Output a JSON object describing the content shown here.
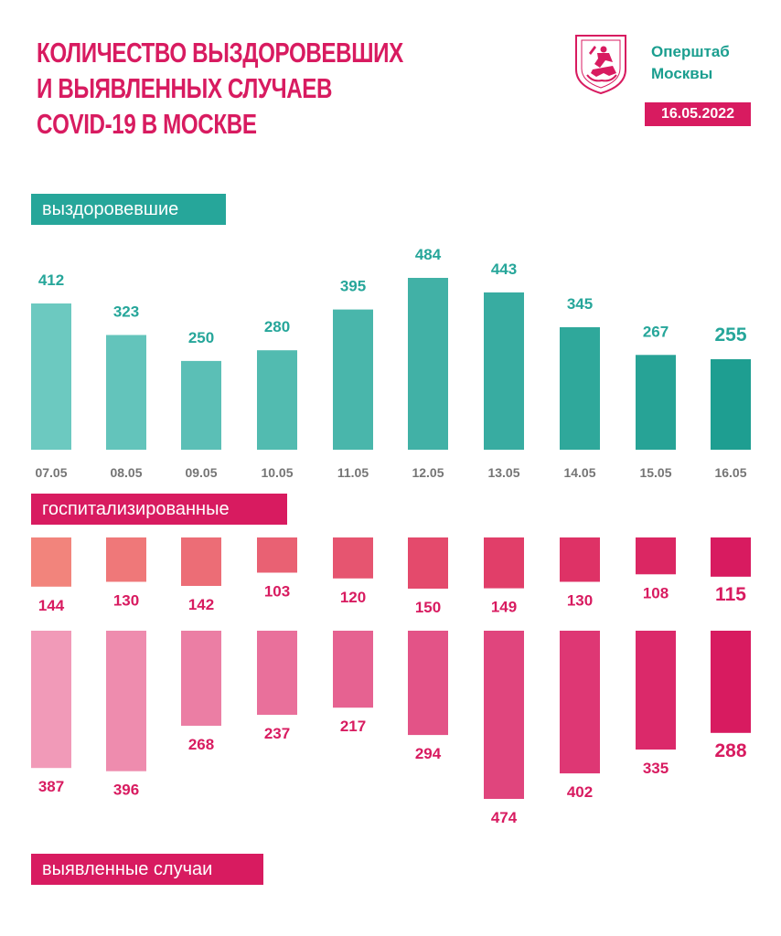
{
  "header": {
    "title_lines": [
      "КОЛИЧЕСТВО ВЫЗДОРОВЕВШИХ",
      "И ВЫЯВЛЕННЫХ СЛУЧАЕВ",
      "COVID-19 В МОСКВЕ"
    ],
    "brand_lines": [
      "Оперштаб",
      "Москвы"
    ],
    "date": "16.05.2022",
    "logo_icon": "moscow-coat-of-arms-icon"
  },
  "labels": {
    "recovered": "выздоровевшие",
    "hospitalized": "госпитализированные",
    "cases": "выявленные случаи"
  },
  "colors": {
    "accent_pink": "#d81b60",
    "accent_teal": "#26a69a",
    "brand_teal": "#1a9e8f",
    "date_label_gray": "#757575"
  },
  "chart_data": [
    {
      "type": "bar",
      "categories": [
        "07.05",
        "08.05",
        "09.05",
        "10.05",
        "11.05",
        "12.05",
        "13.05",
        "14.05",
        "15.05",
        "16.05"
      ],
      "series": [
        {
          "name": "выздоровевшие",
          "values": [
            412,
            323,
            250,
            280,
            395,
            484,
            443,
            345,
            267,
            255
          ]
        }
      ],
      "direction": "up",
      "color_gradient": [
        "#6cc9c0",
        "#1e9e91"
      ]
    },
    {
      "type": "bar",
      "categories": [
        "07.05",
        "08.05",
        "09.05",
        "10.05",
        "11.05",
        "12.05",
        "13.05",
        "14.05",
        "15.05",
        "16.05"
      ],
      "series": [
        {
          "name": "госпитализированные",
          "values": [
            144,
            130,
            142,
            103,
            120,
            150,
            149,
            130,
            108,
            115
          ]
        }
      ],
      "direction": "down",
      "color_gradient": [
        "#f2847c",
        "#d81b60"
      ]
    },
    {
      "type": "bar",
      "categories": [
        "07.05",
        "08.05",
        "09.05",
        "10.05",
        "11.05",
        "12.05",
        "13.05",
        "14.05",
        "15.05",
        "16.05"
      ],
      "series": [
        {
          "name": "выявленные случаи",
          "values": [
            387,
            396,
            268,
            237,
            217,
            294,
            474,
            402,
            335,
            288
          ]
        }
      ],
      "direction": "down",
      "color_gradient": [
        "#f19ab8",
        "#d81b60"
      ]
    }
  ]
}
